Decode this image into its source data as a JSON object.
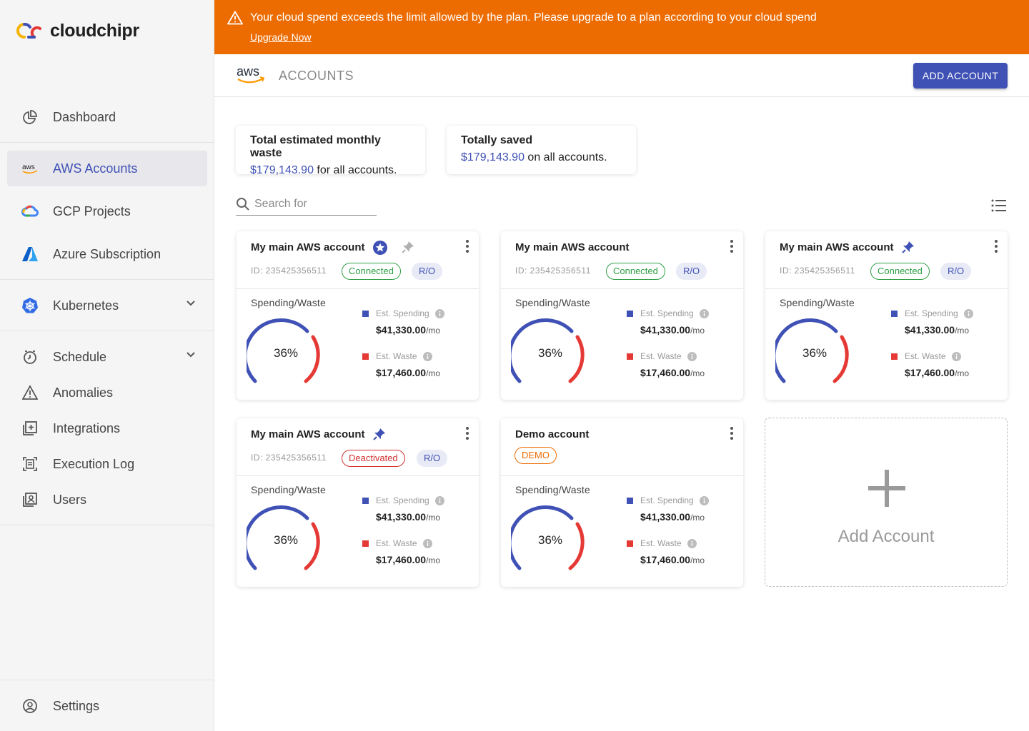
{
  "brand": {
    "name": "cloudchipr"
  },
  "sidebar": {
    "items": [
      {
        "label": "Dashboard"
      },
      {
        "label": "AWS Accounts"
      },
      {
        "label": "GCP Projects"
      },
      {
        "label": "Azure Subscription"
      },
      {
        "label": "Kubernetes"
      },
      {
        "label": "Schedule"
      },
      {
        "label": "Anomalies"
      },
      {
        "label": "Integrations"
      },
      {
        "label": "Execution Log"
      },
      {
        "label": "Users"
      }
    ],
    "settings_label": "Settings",
    "aws_badge": "aws"
  },
  "banner": {
    "message": "Your cloud spend exceeds the limit allowed by the plan. Please upgrade to a plan according to your cloud spend",
    "link": "Upgrade Now"
  },
  "header": {
    "provider_logo": "aws",
    "title": "ACCOUNTS",
    "add_button": "ADD ACCOUNT"
  },
  "summary": {
    "waste": {
      "title": "Total estimated monthly waste",
      "amount": "$179,143.90",
      "suffix": " for all accounts."
    },
    "saved": {
      "title": "Totally saved",
      "amount": "$179,143.90",
      "suffix": " on all accounts."
    }
  },
  "search": {
    "placeholder": "Search for"
  },
  "cards": [
    {
      "name": "My main AWS account",
      "id": "ID: 235425356511",
      "status": "Connected",
      "access": "R/O",
      "section": "Spending/Waste",
      "percent": "36%",
      "spend_label": "Est. Spending",
      "spend": "$41,330.00",
      "waste_label": "Est. Waste",
      "waste": "$17,460.00",
      "unit": "/mo"
    },
    {
      "name": "My main AWS account",
      "id": "ID: 235425356511",
      "status": "Connected",
      "access": "R/O",
      "section": "Spending/Waste",
      "percent": "36%",
      "spend_label": "Est. Spending",
      "spend": "$41,330.00",
      "waste_label": "Est. Waste",
      "waste": "$17,460.00",
      "unit": "/mo"
    },
    {
      "name": "My main AWS account",
      "id": "ID: 235425356511",
      "status": "Connected",
      "access": "R/O",
      "section": "Spending/Waste",
      "percent": "36%",
      "spend_label": "Est. Spending",
      "spend": "$41,330.00",
      "waste_label": "Est. Waste",
      "waste": "$17,460.00",
      "unit": "/mo"
    },
    {
      "name": "My main AWS account",
      "id": "ID: 235425356511",
      "status": "Deactivated",
      "access": "R/O",
      "section": "Spending/Waste",
      "percent": "36%",
      "spend_label": "Est. Spending",
      "spend": "$41,330.00",
      "waste_label": "Est. Waste",
      "waste": "$17,460.00",
      "unit": "/mo"
    },
    {
      "name": "Demo account",
      "status": "DEMO",
      "section": "Spending/Waste",
      "percent": "36%",
      "spend_label": "Est. Spending",
      "spend": "$41,330.00",
      "waste_label": "Est. Waste",
      "waste": "$17,460.00",
      "unit": "/mo"
    }
  ],
  "add_card": {
    "label": "Add Account"
  },
  "colors": {
    "primary": "#3f51b5",
    "banner": "#ed6c02",
    "waste": "#e53935",
    "connected": "#2e9e44",
    "deactivated": "#d32f2f"
  }
}
